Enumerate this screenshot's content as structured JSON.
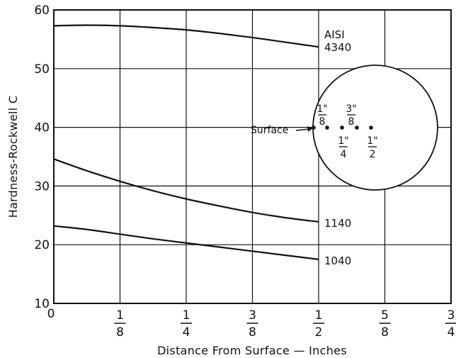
{
  "chart_data": {
    "type": "line",
    "xlabel": "Distance From Surface — Inches",
    "ylabel": "Hardness-Rockwell C",
    "xlim": [
      0,
      0.75
    ],
    "ylim": [
      10,
      60
    ],
    "grid": true,
    "x_ticks": [
      {
        "value": 0,
        "label": "0"
      },
      {
        "value": 0.125,
        "num": "1",
        "den": "8"
      },
      {
        "value": 0.25,
        "num": "1",
        "den": "4"
      },
      {
        "value": 0.375,
        "num": "3",
        "den": "8"
      },
      {
        "value": 0.5,
        "num": "1",
        "den": "2"
      },
      {
        "value": 0.625,
        "num": "5",
        "den": "8"
      },
      {
        "value": 0.75,
        "num": "3",
        "den": "4"
      }
    ],
    "y_ticks": [
      10,
      20,
      30,
      40,
      50,
      60
    ],
    "series": [
      {
        "name": "AISI\n4340",
        "x": [
          0,
          0.0625,
          0.125,
          0.1875,
          0.25,
          0.3125,
          0.375,
          0.4375,
          0.5
        ],
        "y": [
          57.3,
          57.4,
          57.3,
          57.0,
          56.6,
          56.0,
          55.3,
          54.5,
          53.7
        ]
      },
      {
        "name": "1140",
        "x": [
          0,
          0.0625,
          0.125,
          0.1875,
          0.25,
          0.3125,
          0.375,
          0.4375,
          0.5
        ],
        "y": [
          34.6,
          32.6,
          30.8,
          29.2,
          27.8,
          26.6,
          25.5,
          24.6,
          23.9
        ]
      },
      {
        "name": "1040",
        "x": [
          0,
          0.0625,
          0.125,
          0.1875,
          0.25,
          0.3125,
          0.375,
          0.4375,
          0.5
        ],
        "y": [
          23.2,
          22.6,
          21.8,
          21.0,
          20.3,
          19.6,
          18.9,
          18.2,
          17.5
        ]
      }
    ],
    "inset": {
      "surface_label": "Surface",
      "depth_labels": [
        {
          "num": "1\"",
          "den": "8"
        },
        {
          "num": "3\"",
          "den": "8"
        },
        {
          "num": "1\"",
          "den": "4"
        },
        {
          "num": "1\"",
          "den": "2"
        }
      ]
    }
  }
}
